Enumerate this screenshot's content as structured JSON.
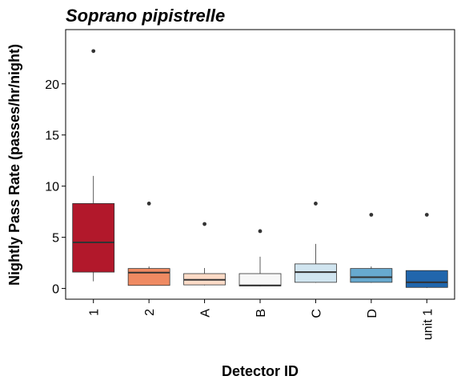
{
  "chart_data": {
    "type": "box",
    "title": "Soprano pipistrelle",
    "xlabel": "Detector ID",
    "ylabel": "Nightly Pass Rate (passes/hr/night)",
    "ylim": [
      -1.05,
      25.3
    ],
    "yticks": [
      0,
      5,
      10,
      15,
      20
    ],
    "grid": false,
    "legend": "none",
    "categories": [
      "1",
      "2",
      "A",
      "B",
      "C",
      "D",
      "unit 1"
    ],
    "colors": [
      "#B2182B",
      "#EF8A62",
      "#FDDBC7",
      "#F7F7F7",
      "#D1E5F0",
      "#67A9CF",
      "#2166AC"
    ],
    "boxes": [
      {
        "category": "1",
        "whisker_low": 0.7,
        "q1": 1.6,
        "median": 4.5,
        "q3": 8.3,
        "whisker_high": 11.0,
        "outliers": [
          23.2
        ]
      },
      {
        "category": "2",
        "whisker_low": 0.3,
        "q1": 0.3,
        "median": 1.55,
        "q3": 1.95,
        "whisker_high": 2.15,
        "outliers": [
          8.3
        ]
      },
      {
        "category": "A",
        "whisker_low": 0.3,
        "q1": 0.35,
        "median": 0.85,
        "q3": 1.45,
        "whisker_high": 2.0,
        "outliers": [
          6.3
        ]
      },
      {
        "category": "B",
        "whisker_low": 0.2,
        "q1": 0.25,
        "median": 0.3,
        "q3": 1.45,
        "whisker_high": 3.1,
        "outliers": [
          5.6
        ]
      },
      {
        "category": "C",
        "whisker_low": 0.55,
        "q1": 0.6,
        "median": 1.6,
        "q3": 2.4,
        "whisker_high": 4.35,
        "outliers": [
          8.3
        ]
      },
      {
        "category": "D",
        "whisker_low": 0.55,
        "q1": 0.6,
        "median": 1.1,
        "q3": 1.95,
        "whisker_high": 2.15,
        "outliers": [
          7.2
        ]
      },
      {
        "category": "unit 1",
        "whisker_low": 0.05,
        "q1": 0.1,
        "median": 0.6,
        "q3": 1.75,
        "whisker_high": 1.75,
        "outliers": [
          7.2
        ]
      }
    ]
  }
}
